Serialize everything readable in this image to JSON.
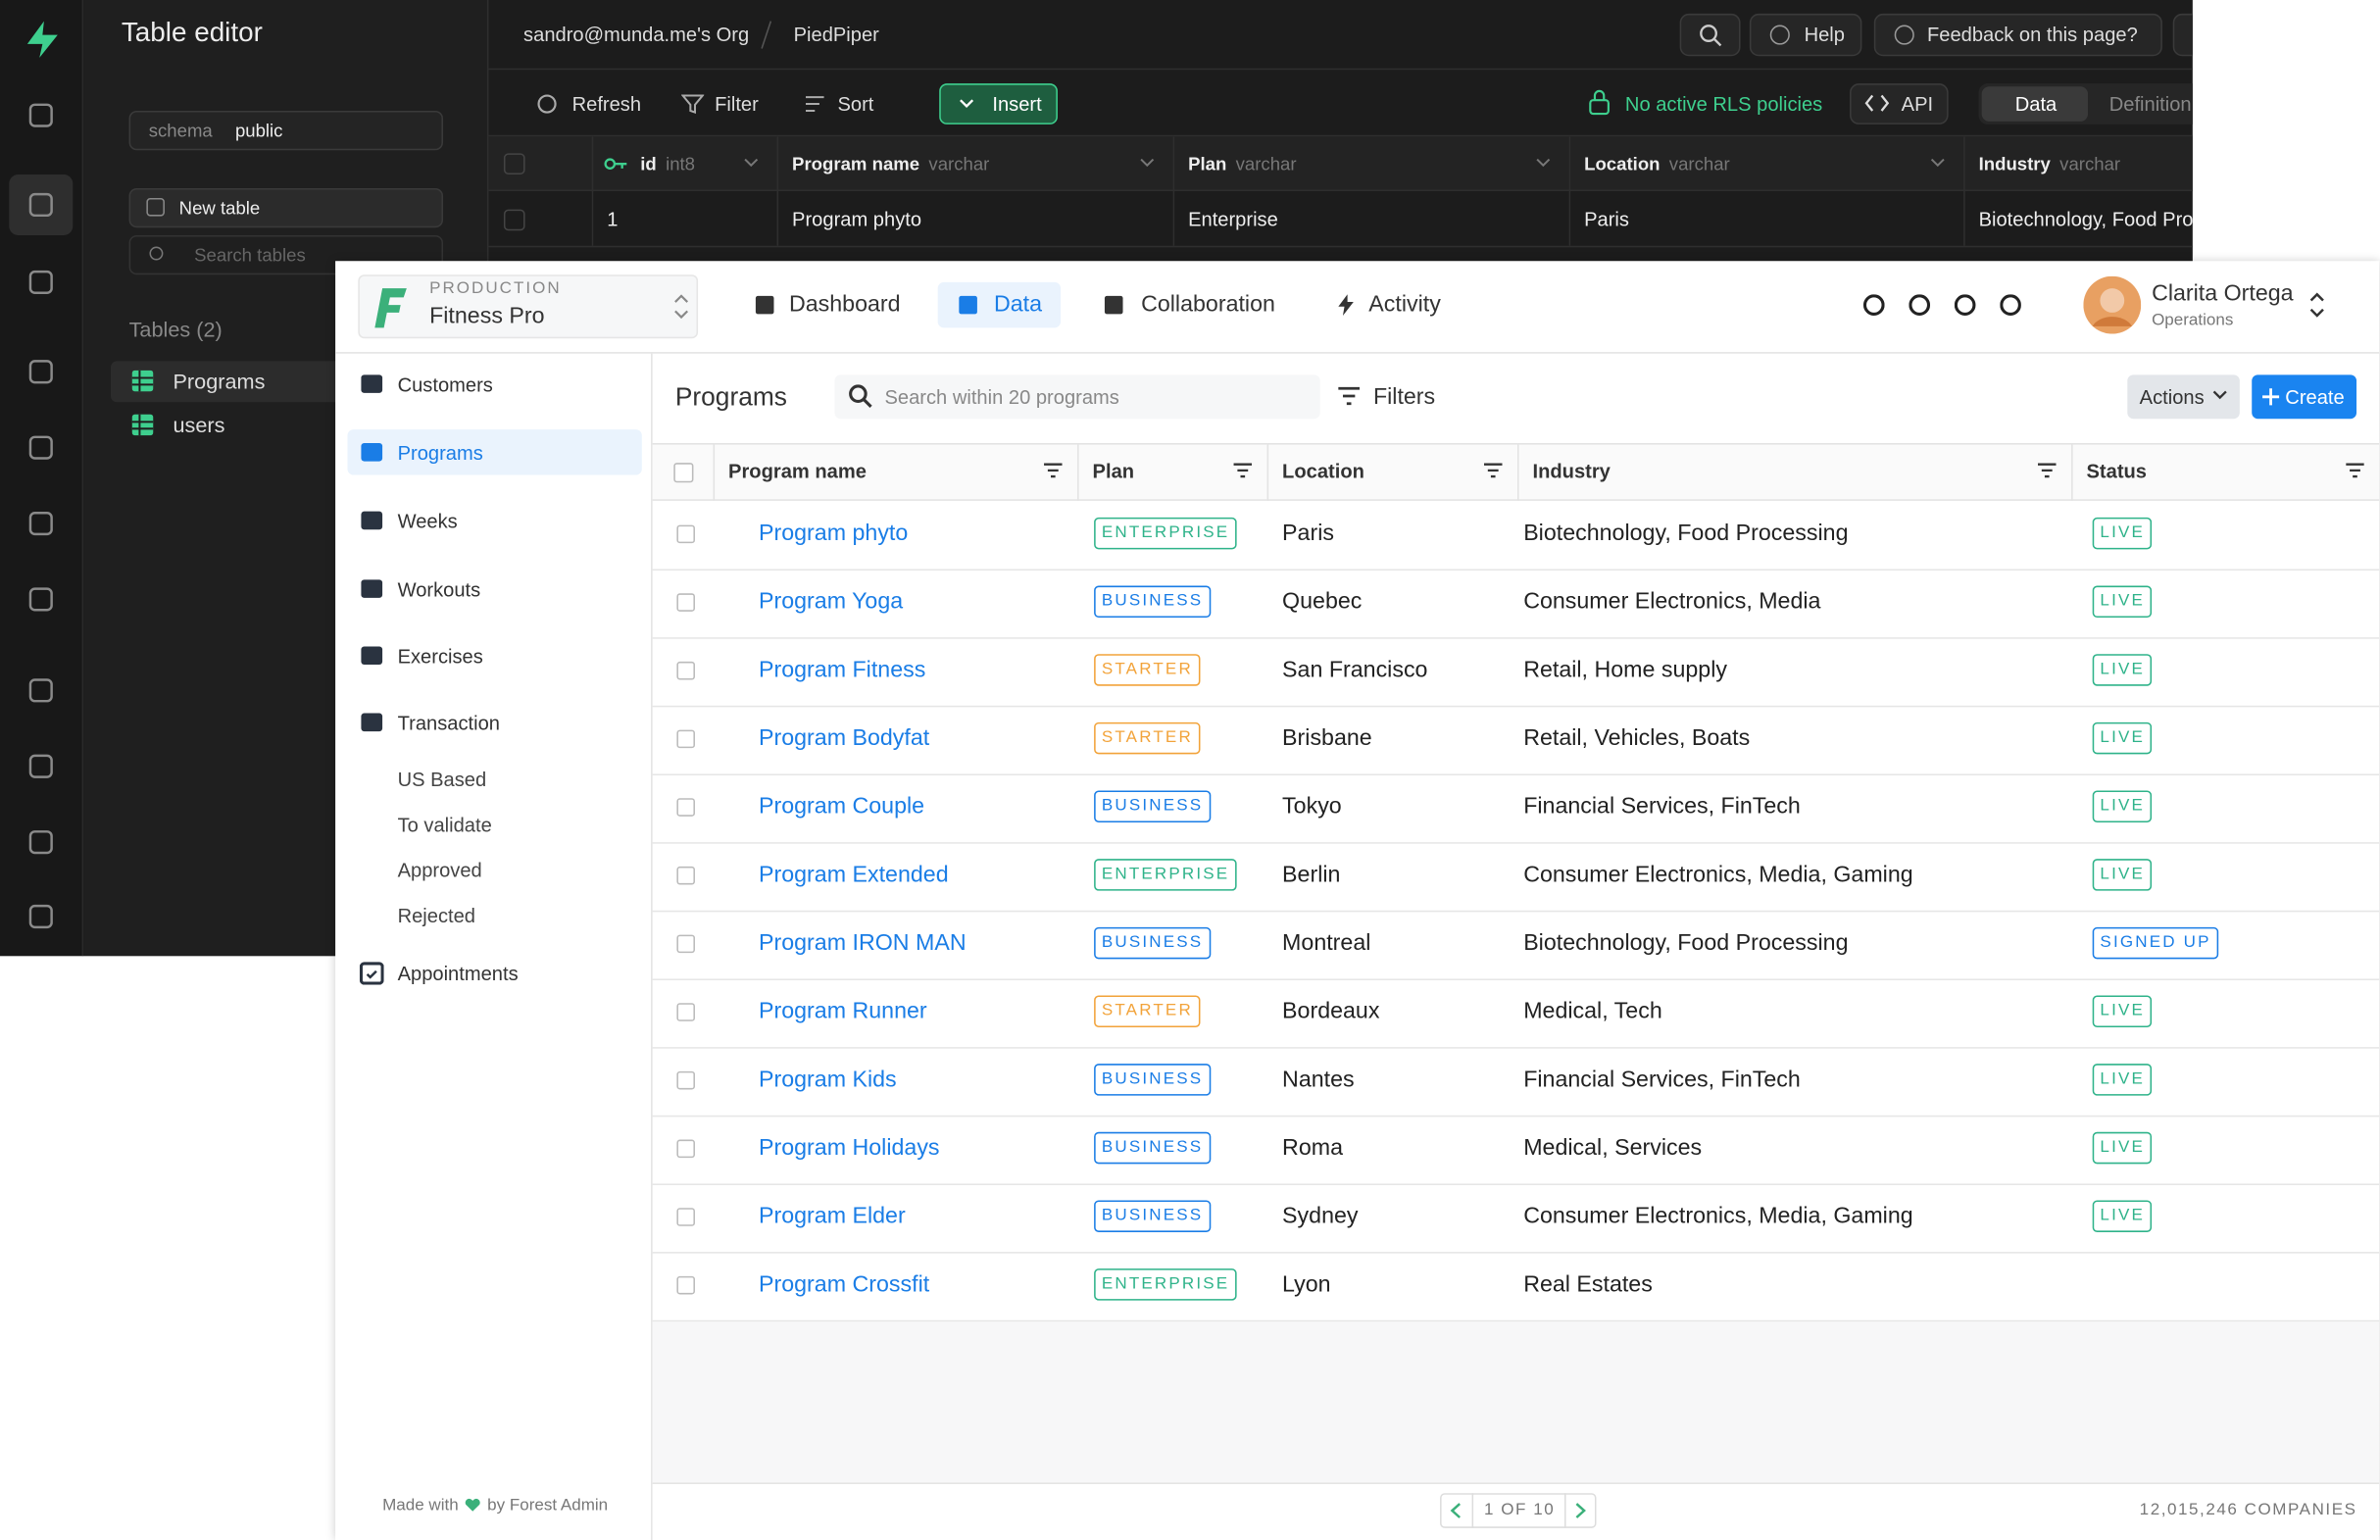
{
  "supabase": {
    "title": "Table editor",
    "org": "sandro@munda.me's Org",
    "project": "PiedPiper",
    "help": "Help",
    "feedback": "Feedback on this page?",
    "toolbar": {
      "refresh": "Refresh",
      "filter": "Filter",
      "sort": "Sort",
      "insert": "Insert",
      "rls": "No active RLS policies",
      "api": "API",
      "data": "Data",
      "definition": "Definition"
    },
    "schema_label": "schema",
    "schema": "public",
    "new_table": "New table",
    "search_tables": "Search tables",
    "tables_heading": "Tables (2)",
    "tables": [
      "Programs",
      "users"
    ],
    "columns": [
      {
        "name": "id",
        "type": "int8"
      },
      {
        "name": "Program name",
        "type": "varchar"
      },
      {
        "name": "Plan",
        "type": "varchar"
      },
      {
        "name": "Location",
        "type": "varchar"
      },
      {
        "name": "Industry",
        "type": "varchar"
      }
    ],
    "row": [
      "1",
      "Program phyto",
      "Enterprise",
      "Paris",
      "Biotechnology, Food Processing"
    ]
  },
  "forest": {
    "environment": "PRODUCTION",
    "project": "Fitness Pro",
    "nav": [
      "Dashboard",
      "Data",
      "Collaboration",
      "Activity"
    ],
    "user": "Clarita Ortega",
    "role": "Operations",
    "sidebar": [
      "Customers",
      "Programs",
      "Weeks",
      "Workouts",
      "Exercises",
      "Transaction"
    ],
    "segments": [
      "US Based",
      "To validate",
      "Approved",
      "Rejected"
    ],
    "sidebar_last": "Appointments",
    "made_with": "Made with",
    "by": "by Forest Admin",
    "collection": "Programs",
    "search": "Search within 20 programs",
    "filters": "Filters",
    "actions": "Actions",
    "create": "Create",
    "columns": [
      "Program name",
      "Plan",
      "Location",
      "Industry",
      "Status"
    ],
    "rows": [
      {
        "name": "Program phyto",
        "plan": "ENTERPRISE",
        "plan_color": "#2fb38a",
        "location": "Paris",
        "industry": "Biotechnology, Food Processing",
        "status": "LIVE",
        "status_color": "#2fb38a"
      },
      {
        "name": "Program Yoga",
        "plan": "BUSINESS",
        "plan_color": "#1a7de6",
        "location": "Quebec",
        "industry": "Consumer Electronics, Media",
        "status": "LIVE",
        "status_color": "#2fb38a"
      },
      {
        "name": "Program Fitness",
        "plan": "STARTER",
        "plan_color": "#f2a33a",
        "location": "San Francisco",
        "industry": "Retail, Home supply",
        "status": "LIVE",
        "status_color": "#2fb38a"
      },
      {
        "name": "Program Bodyfat",
        "plan": "STARTER",
        "plan_color": "#f2a33a",
        "location": "Brisbane",
        "industry": "Retail, Vehicles, Boats",
        "status": "LIVE",
        "status_color": "#2fb38a"
      },
      {
        "name": "Program Couple",
        "plan": "BUSINESS",
        "plan_color": "#1a7de6",
        "location": "Tokyo",
        "industry": "Financial Services, FinTech",
        "status": "LIVE",
        "status_color": "#2fb38a"
      },
      {
        "name": "Program Extended",
        "plan": "ENTERPRISE",
        "plan_color": "#2fb38a",
        "location": "Berlin",
        "industry": "Consumer Electronics, Media, Gaming",
        "status": "LIVE",
        "status_color": "#2fb38a"
      },
      {
        "name": "Program IRON MAN",
        "plan": "BUSINESS",
        "plan_color": "#1a7de6",
        "location": "Montreal",
        "industry": "Biotechnology, Food Processing",
        "status": "SIGNED UP",
        "status_color": "#1a7de6"
      },
      {
        "name": "Program Runner",
        "plan": "STARTER",
        "plan_color": "#f2a33a",
        "location": "Bordeaux",
        "industry": "Medical, Tech",
        "status": "LIVE",
        "status_color": "#2fb38a"
      },
      {
        "name": "Program Kids",
        "plan": "BUSINESS",
        "plan_color": "#1a7de6",
        "location": "Nantes",
        "industry": "Financial Services, FinTech",
        "status": "LIVE",
        "status_color": "#2fb38a"
      },
      {
        "name": "Program Holidays",
        "plan": "BUSINESS",
        "plan_color": "#1a7de6",
        "location": "Roma",
        "industry": "Medical, Services",
        "status": "LIVE",
        "status_color": "#2fb38a"
      },
      {
        "name": "Program Elder",
        "plan": "BUSINESS",
        "plan_color": "#1a7de6",
        "location": "Sydney",
        "industry": "Consumer Electronics, Media, Gaming",
        "status": "LIVE",
        "status_color": "#2fb38a"
      },
      {
        "name": "Program Crossfit",
        "plan": "ENTERPRISE",
        "plan_color": "#2fb38a",
        "location": "Lyon",
        "industry": "Real Estates"
      }
    ],
    "pagination": "1 OF 10",
    "count": "12,015,246 COMPANIES"
  }
}
